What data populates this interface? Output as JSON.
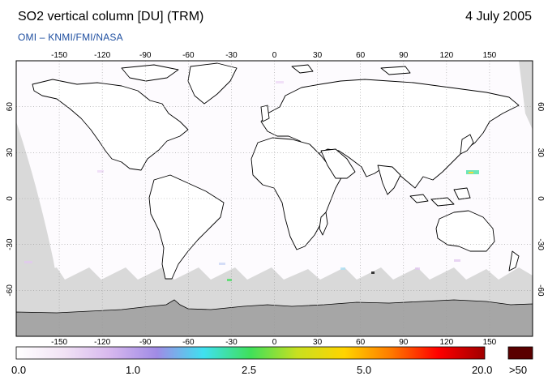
{
  "header": {
    "title": "SO2 vertical column [DU] (TRM)",
    "date": "4 July 2005",
    "credit": "OMI  –  KNMI/FMI/NASA"
  },
  "map": {
    "projection": "equirectangular",
    "lon_ticks": [
      "-150",
      "-120",
      "-90",
      "-60",
      "-30",
      "0",
      "30",
      "60",
      "90",
      "120",
      "150"
    ],
    "lat_ticks_left": [
      "60",
      "30",
      "0",
      "-30",
      "-60"
    ],
    "lat_ticks_right": [
      "60",
      "30",
      "0",
      "-30",
      "-60"
    ],
    "grid": "dotted",
    "missing_data_color": "#d9d9d9",
    "polar_no_data_color": "#a6a6a6"
  },
  "colorbar": {
    "labels": [
      "0.0",
      "1.0",
      "2.5",
      "5.0",
      "20.0"
    ],
    "overflow_label": ">50",
    "overflow_color": "#5a0000",
    "stops": [
      "#ffffff",
      "#f2e3f5",
      "#d7b8ee",
      "#a08be6",
      "#3fe0f0",
      "#3fe05a",
      "#c8e020",
      "#ffd400",
      "#ff7a00",
      "#ff0000",
      "#a00000"
    ]
  }
}
